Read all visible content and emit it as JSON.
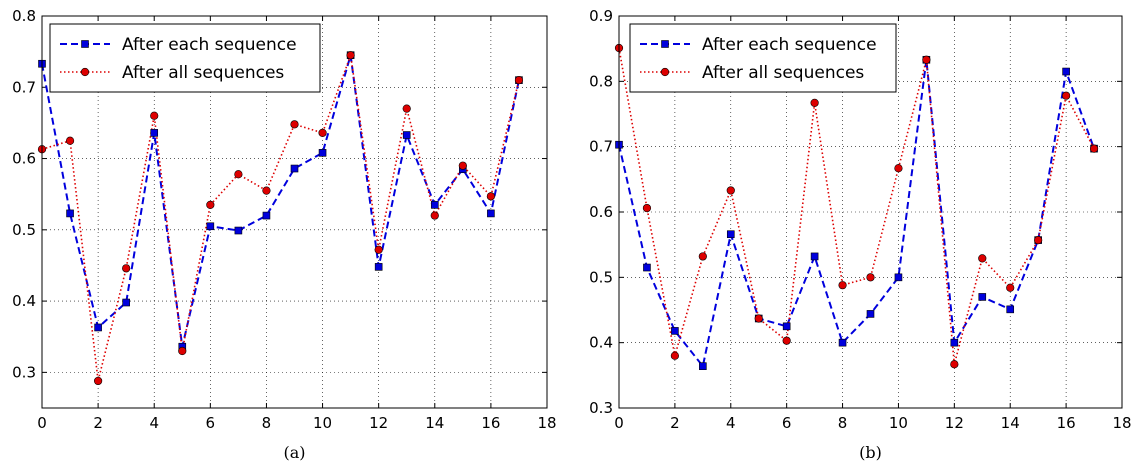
{
  "chart_data": [
    {
      "type": "line",
      "caption": "(a)",
      "xlim": [
        0,
        18
      ],
      "ylim": [
        0.25,
        0.8
      ],
      "xticks": [
        0,
        2,
        4,
        6,
        8,
        10,
        12,
        14,
        16,
        18
      ],
      "yticks": [
        0.3,
        0.4,
        0.5,
        0.6,
        0.7,
        0.8
      ],
      "grid": true,
      "legend_position": "top-left",
      "x": [
        0,
        1,
        2,
        3,
        4,
        5,
        6,
        7,
        8,
        9,
        10,
        11,
        12,
        13,
        14,
        15,
        16,
        17
      ],
      "series": [
        {
          "name": "After each sequence",
          "color": "#0000dd",
          "style": "dashed",
          "marker": "square",
          "values": [
            0.733,
            0.523,
            0.363,
            0.398,
            0.636,
            0.336,
            0.505,
            0.499,
            0.52,
            0.586,
            0.608,
            0.745,
            0.448,
            0.633,
            0.535,
            0.585,
            0.523,
            0.71
          ]
        },
        {
          "name": "After all sequences",
          "color": "#dd0000",
          "style": "dotted",
          "marker": "circle",
          "values": [
            0.613,
            0.625,
            0.288,
            0.446,
            0.66,
            0.33,
            0.535,
            0.578,
            0.555,
            0.648,
            0.636,
            0.745,
            0.472,
            0.67,
            0.52,
            0.59,
            0.547,
            0.71
          ]
        }
      ]
    },
    {
      "type": "line",
      "caption": "(b)",
      "xlim": [
        0,
        18
      ],
      "ylim": [
        0.3,
        0.9
      ],
      "xticks": [
        0,
        2,
        4,
        6,
        8,
        10,
        12,
        14,
        16,
        18
      ],
      "yticks": [
        0.3,
        0.4,
        0.5,
        0.6,
        0.7,
        0.8,
        0.9
      ],
      "grid": true,
      "legend_position": "top-right",
      "x": [
        0,
        1,
        2,
        3,
        4,
        5,
        6,
        7,
        8,
        9,
        10,
        11,
        12,
        13,
        14,
        15,
        16,
        17
      ],
      "series": [
        {
          "name": "After each sequence",
          "color": "#0000dd",
          "style": "dashed",
          "marker": "square",
          "values": [
            0.703,
            0.515,
            0.418,
            0.364,
            0.566,
            0.437,
            0.425,
            0.532,
            0.4,
            0.444,
            0.5,
            0.833,
            0.4,
            0.47,
            0.451,
            0.557,
            0.815,
            0.697
          ]
        },
        {
          "name": "After all sequences",
          "color": "#dd0000",
          "style": "dotted",
          "marker": "circle",
          "values": [
            0.851,
            0.606,
            0.38,
            0.532,
            0.633,
            0.437,
            0.403,
            0.767,
            0.488,
            0.5,
            0.667,
            0.833,
            0.367,
            0.529,
            0.484,
            0.557,
            0.778,
            0.697
          ]
        }
      ]
    }
  ]
}
